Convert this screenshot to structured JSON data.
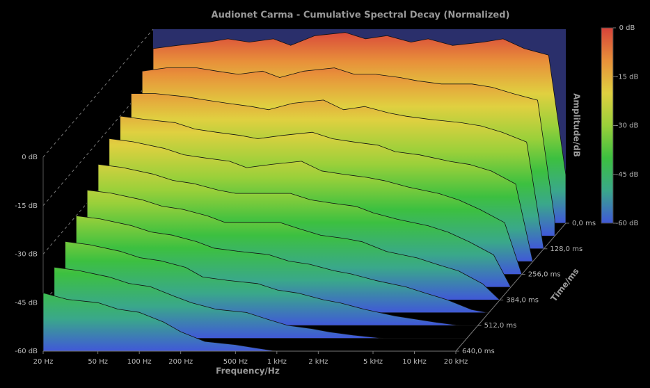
{
  "chart_data": {
    "type": "waterfall",
    "title": "Audionet Carma - Cumulative Spectral Decay (Normalized)",
    "xlabel": "Frequency/Hz",
    "zlabel": "Time/ms",
    "log_x": true,
    "xlim": [
      20,
      20000
    ],
    "xticks": [
      {
        "value": 20,
        "label": "20 Hz"
      },
      {
        "value": 50,
        "label": "50 Hz"
      },
      {
        "value": 100,
        "label": "100 Hz"
      },
      {
        "value": 200,
        "label": "200 Hz"
      },
      {
        "value": 500,
        "label": "500 Hz"
      },
      {
        "value": 1000,
        "label": "1 kHz"
      },
      {
        "value": 2000,
        "label": "2 kHz"
      },
      {
        "value": 5000,
        "label": "5 kHz"
      },
      {
        "value": 10000,
        "label": "10 kHz"
      },
      {
        "value": 20000,
        "label": "20 kHz"
      }
    ],
    "ylim": [
      -60,
      0
    ],
    "yticks": [
      {
        "value": 0,
        "label": "0 dB"
      },
      {
        "value": -15,
        "label": "-15 dB"
      },
      {
        "value": -30,
        "label": "-30 dB"
      },
      {
        "value": -45,
        "label": "-45 dB"
      },
      {
        "value": -60,
        "label": "-60 dB"
      }
    ],
    "zlim": [
      0,
      640
    ],
    "zticks": [
      {
        "value": 0,
        "label": "0,0 ms"
      },
      {
        "value": 128,
        "label": "128,0 ms"
      },
      {
        "value": 256,
        "label": "256,0 ms"
      },
      {
        "value": 384,
        "label": "384,0 ms"
      },
      {
        "value": 512,
        "label": "512,0 ms"
      },
      {
        "value": 640,
        "label": "640,0 ms"
      }
    ],
    "colorscale": [
      "#d8433a",
      "#e8903a",
      "#e0d040",
      "#9ad03a",
      "#3cc040",
      "#3aa88a",
      "#4058d8"
    ],
    "wall_color": "#2a2f6b",
    "colorbar": {
      "label": "Amplitude/dB",
      "ticks": [
        {
          "value": 0,
          "label": "0 dB"
        },
        {
          "value": -15,
          "label": "-15 dB"
        },
        {
          "value": -30,
          "label": "-30 dB"
        },
        {
          "value": -45,
          "label": "-45 dB"
        },
        {
          "value": -60,
          "label": "-60 dB"
        }
      ]
    },
    "x": [
      20,
      30,
      50,
      70,
      100,
      150,
      200,
      300,
      500,
      700,
      1000,
      1500,
      2000,
      3000,
      5000,
      7000,
      10000,
      15000,
      20000
    ],
    "z": [
      0,
      64,
      128,
      192,
      256,
      320,
      384,
      448,
      512,
      576,
      640
    ],
    "values": [
      [
        -6,
        -5,
        -4,
        -3,
        -4,
        -3,
        -5,
        -2,
        -1,
        -3,
        -2,
        -4,
        -3,
        -5,
        -4,
        -3,
        -6,
        -8,
        -45
      ],
      [
        -9,
        -8,
        -8,
        -9,
        -10,
        -9,
        -11,
        -9,
        -8,
        -10,
        -10,
        -11,
        -12,
        -13,
        -13,
        -14,
        -16,
        -18,
        -55
      ],
      [
        -12,
        -12,
        -13,
        -14,
        -15,
        -16,
        -17,
        -15,
        -14,
        -17,
        -16,
        -18,
        -19,
        -20,
        -21,
        -22,
        -24,
        -27,
        -60
      ],
      [
        -15,
        -16,
        -17,
        -19,
        -20,
        -21,
        -22,
        -21,
        -20,
        -22,
        -23,
        -24,
        -26,
        -27,
        -29,
        -30,
        -32,
        -36,
        -60
      ],
      [
        -18,
        -19,
        -21,
        -23,
        -24,
        -25,
        -27,
        -26,
        -25,
        -28,
        -29,
        -30,
        -31,
        -33,
        -35,
        -37,
        -40,
        -44,
        -60
      ],
      [
        -22,
        -23,
        -25,
        -27,
        -28,
        -30,
        -31,
        -31,
        -31,
        -33,
        -34,
        -35,
        -37,
        -39,
        -41,
        -43,
        -46,
        -50,
        -60
      ],
      [
        -26,
        -27,
        -29,
        -31,
        -32,
        -34,
        -36,
        -36,
        -36,
        -38,
        -40,
        -41,
        -42,
        -45,
        -47,
        -49,
        -51,
        -55,
        -60
      ],
      [
        -30,
        -31,
        -33,
        -35,
        -36,
        -38,
        -40,
        -41,
        -42,
        -44,
        -45,
        -47,
        -48,
        -50,
        -52,
        -54,
        -56,
        -59,
        -60
      ],
      [
        -34,
        -35,
        -37,
        -39,
        -40,
        -42,
        -45,
        -46,
        -47,
        -49,
        -50,
        -52,
        -53,
        -55,
        -57,
        -58,
        -59,
        -60,
        -60
      ],
      [
        -38,
        -39,
        -41,
        -43,
        -44,
        -47,
        -49,
        -51,
        -52,
        -54,
        -56,
        -57,
        -58,
        -59,
        -60,
        -60,
        -60,
        -60,
        -60
      ],
      [
        -42,
        -44,
        -45,
        -47,
        -48,
        -51,
        -54,
        -57,
        -58,
        -59,
        -60,
        -60,
        -60,
        -60,
        -60,
        -60,
        -60,
        -60,
        -60
      ]
    ]
  }
}
